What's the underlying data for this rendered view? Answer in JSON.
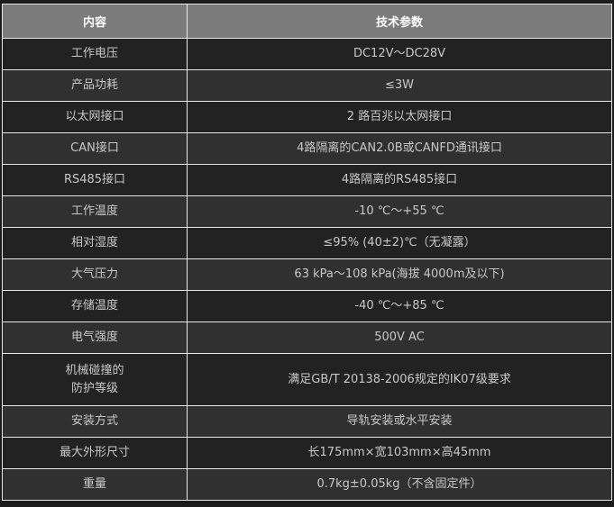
{
  "header": {
    "col1": "内容",
    "col2": "技术参数"
  },
  "rows": [
    {
      "label": "工作电压",
      "value": "DC12V～DC28V"
    },
    {
      "label": "产品功耗",
      "value": "≤3W"
    },
    {
      "label": "以太网接口",
      "value": "2 路百兆以太网接口"
    },
    {
      "label": "CAN接口",
      "value": "4路隔离的CAN2.0B或CANFD通讯接口"
    },
    {
      "label": "RS485接口",
      "value": "4路隔离的RS485接口"
    },
    {
      "label": "工作温度",
      "value": "-10 ℃～+55 ℃"
    },
    {
      "label": "相对湿度",
      "value": "≤95% (40±2)℃（无凝露）"
    },
    {
      "label": "大气压力",
      "value": "63 kPa～108 kPa(海拔 4000m及以下)"
    },
    {
      "label": "存储温度",
      "value": "-40 ℃～+85 ℃"
    },
    {
      "label": "电气强度",
      "value": "500V AC"
    },
    {
      "label": "机械碰撞的",
      "label2": "防护等级",
      "value": "满足GB/T 20138-2006规定的IK07级要求"
    },
    {
      "label": "安装方式",
      "value": "导轨安装或水平安装"
    },
    {
      "label": "最大外形尺寸",
      "value": "长175mm×宽103mm×高45mm"
    },
    {
      "label": "重量",
      "value": "0.7kg±0.05kg（不含固定件）"
    }
  ]
}
